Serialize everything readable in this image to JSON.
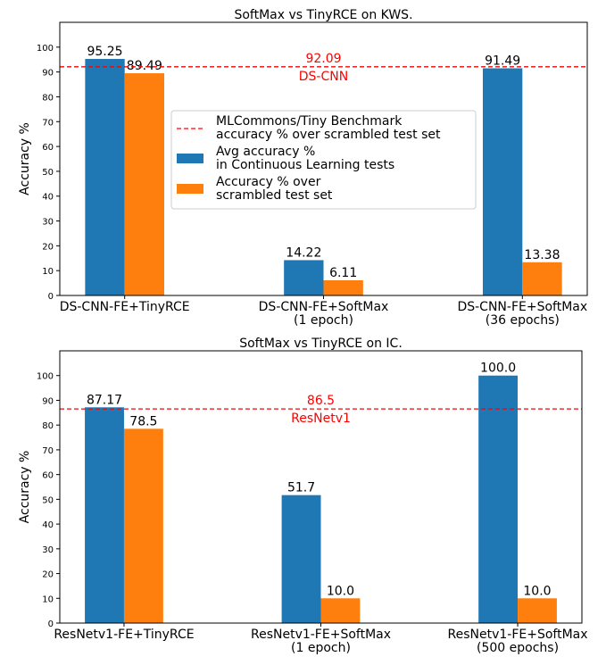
{
  "chart_data": [
    {
      "type": "bar",
      "title": "SoftMax vs TinyRCE on KWS.",
      "xlabel": "",
      "ylabel": "Accuracy %",
      "ylim": [
        0,
        110
      ],
      "yticks": [
        0,
        10,
        20,
        30,
        40,
        50,
        60,
        70,
        80,
        90,
        100
      ],
      "categories": [
        [
          "DS-CNN-FE+TinyRCE"
        ],
        [
          "DS-CNN-FE+SoftMax",
          "(1 epoch)"
        ],
        [
          "DS-CNN-FE+SoftMax",
          "(36 epochs)"
        ]
      ],
      "series": [
        {
          "name": "Avg accuracy %\nin Continuous Learning tests",
          "color": "#1f77b4",
          "values": [
            95.25,
            14.22,
            91.49
          ],
          "labels": [
            "95.25",
            "14.22",
            "91.49"
          ]
        },
        {
          "name": "Accuracy % over\nscrambled test set",
          "color": "#ff7f0e",
          "values": [
            89.49,
            6.11,
            13.38
          ],
          "labels": [
            "89.49",
            "6.11",
            "13.38"
          ]
        }
      ],
      "reference_line": {
        "value": 92.09,
        "value_label": "92.09",
        "text": "DS-CNN",
        "legend": "MLCommons/Tiny Benchmark\naccuracy % over scrambled test set",
        "color": "#ff0000"
      },
      "legend_position": "center",
      "grid": false
    },
    {
      "type": "bar",
      "title": "SoftMax vs TinyRCE on IC.",
      "xlabel": "",
      "ylabel": "Accuracy %",
      "ylim": [
        0,
        110
      ],
      "yticks": [
        0,
        10,
        20,
        30,
        40,
        50,
        60,
        70,
        80,
        90,
        100
      ],
      "categories": [
        [
          "ResNetv1-FE+TinyRCE"
        ],
        [
          "ResNetv1-FE+SoftMax",
          "(1 epoch)"
        ],
        [
          "ResNetv1-FE+SoftMax",
          "(500 epochs)"
        ]
      ],
      "series": [
        {
          "name": "",
          "color": "#1f77b4",
          "values": [
            87.17,
            51.7,
            100.0
          ],
          "labels": [
            "87.17",
            "51.7",
            "100.0"
          ]
        },
        {
          "name": "",
          "color": "#ff7f0e",
          "values": [
            78.5,
            10.0,
            10.0
          ],
          "labels": [
            "78.5",
            "10.0",
            "10.0"
          ]
        }
      ],
      "reference_line": {
        "value": 86.5,
        "value_label": "86.5",
        "text": "ResNetv1",
        "legend": "",
        "color": "#ff0000"
      },
      "legend_position": "none",
      "grid": false
    }
  ]
}
